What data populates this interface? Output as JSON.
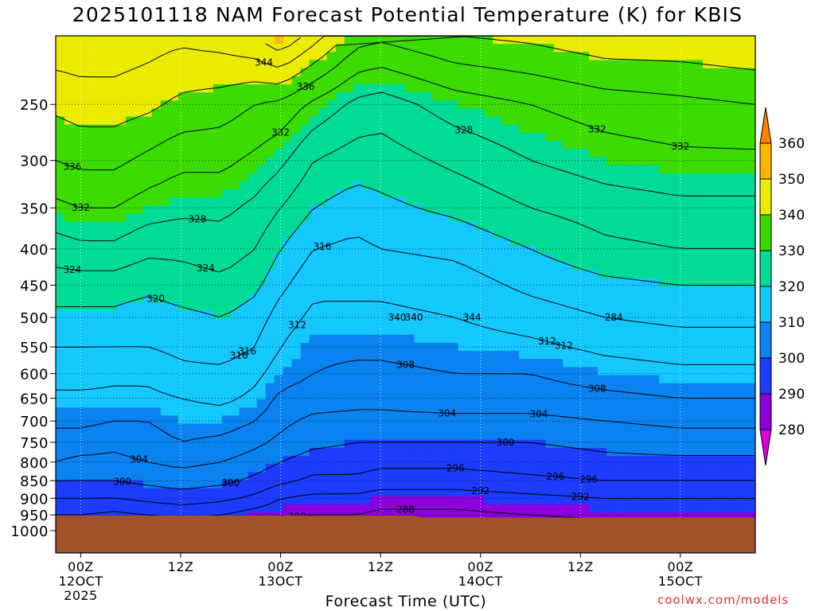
{
  "title": "2025101118 NAM Forecast Potential Temperature (K) for KBIS",
  "xlabel": "Forecast Time (UTC)",
  "credit": "coolwx.com/models",
  "chart_data": {
    "type": "heatmap",
    "title": "2025101118 NAM Forecast Potential Temperature (K) for KBIS",
    "xlabel": "Forecast Time (UTC)",
    "ylabel": "",
    "x_range_hours": [
      -3,
      81
    ],
    "x_ticks": [
      {
        "hour": 0,
        "lines": [
          "00Z",
          "12OCT",
          "2025"
        ]
      },
      {
        "hour": 12,
        "lines": [
          "12Z"
        ]
      },
      {
        "hour": 24,
        "lines": [
          "00Z",
          "13OCT"
        ]
      },
      {
        "hour": 36,
        "lines": [
          "12Z"
        ]
      },
      {
        "hour": 48,
        "lines": [
          "00Z",
          "14OCT"
        ]
      },
      {
        "hour": 60,
        "lines": [
          "12Z"
        ]
      },
      {
        "hour": 72,
        "lines": [
          "00Z",
          "15OCT"
        ]
      }
    ],
    "y_axis": "pressure (hPa), reversed log scale",
    "y_range_hpa": [
      1075,
      200
    ],
    "y_ticks": [
      250,
      300,
      350,
      400,
      450,
      500,
      550,
      600,
      650,
      700,
      750,
      800,
      850,
      900,
      950,
      1000
    ],
    "grid": true,
    "colorbar": {
      "position": "right",
      "levels": [
        280,
        290,
        300,
        310,
        320,
        330,
        340,
        350,
        360
      ],
      "colors": [
        "#dc00dc",
        "#8c00dc",
        "#1e3cff",
        "#0a82f0",
        "#14c8ff",
        "#00dc96",
        "#3cdc00",
        "#ebeb00",
        "#ffb400",
        "#ff8200"
      ]
    },
    "ground_color": "#a0522d",
    "surface_pressure_hpa": [
      {
        "hour": -3,
        "p": 952
      },
      {
        "hour": 40,
        "p": 952
      },
      {
        "hour": 41,
        "p": 958
      },
      {
        "hour": 81,
        "p": 958
      }
    ],
    "contour_interval_k": 4,
    "contour_labels": [
      344,
      340,
      344,
      332,
      340,
      336,
      332,
      328,
      332,
      336,
      328,
      332,
      324,
      316,
      312,
      324,
      316,
      320,
      308,
      312,
      316,
      304,
      308,
      312,
      304,
      300,
      296,
      300,
      292,
      296,
      288,
      296,
      288,
      292,
      304,
      300,
      284,
      284
    ],
    "theta_profiles": {
      "levels_hpa": [
        1000,
        950,
        900,
        850,
        800,
        750,
        700,
        650,
        600,
        550,
        500,
        450,
        400,
        350,
        300,
        250,
        200
      ],
      "columns": [
        {
          "hour": -3,
          "theta": [
            287,
            292,
            296,
            300,
            304,
            306,
            309,
            311,
            314,
            316,
            319,
            322,
            326,
            331,
            336,
            341,
            347
          ]
        },
        {
          "hour": 0,
          "theta": [
            287,
            292,
            296,
            300,
            303,
            306,
            309,
            311,
            314,
            316,
            319,
            322,
            327,
            332,
            337,
            342,
            347
          ]
        },
        {
          "hour": 4,
          "theta": [
            286,
            291,
            296,
            300,
            303,
            305,
            308,
            311,
            313,
            316,
            319,
            322,
            327,
            332,
            337,
            342,
            347
          ]
        },
        {
          "hour": 8,
          "theta": [
            286,
            292,
            297,
            301,
            304,
            306,
            308,
            311,
            313,
            316,
            318,
            321,
            325,
            330,
            335,
            341,
            346
          ]
        },
        {
          "hour": 12,
          "theta": [
            287,
            293,
            298,
            302,
            305,
            308,
            310,
            312,
            315,
            317,
            319,
            322,
            325,
            329,
            333,
            339,
            345
          ]
        },
        {
          "hour": 17,
          "theta": [
            287,
            292,
            297,
            301,
            304,
            307,
            310,
            313,
            315,
            318,
            320,
            323,
            326,
            329,
            333,
            338,
            346
          ]
        },
        {
          "hour": 21,
          "theta": [
            286,
            290,
            295,
            299,
            302,
            305,
            308,
            311,
            313,
            316,
            318,
            321,
            324,
            327,
            331,
            336,
            348
          ]
        },
        {
          "hour": 24,
          "theta": [
            285,
            289,
            292,
            297,
            300,
            303,
            305,
            307,
            310,
            312,
            314,
            317,
            320,
            324,
            329,
            335,
            352
          ]
        },
        {
          "hour": 28,
          "theta": [
            284,
            288,
            291,
            295,
            298,
            301,
            303,
            306,
            308,
            309,
            311,
            313,
            316,
            320,
            324,
            331,
            346
          ]
        },
        {
          "hour": 33,
          "theta": [
            284,
            288,
            291,
            295,
            298,
            300,
            303,
            305,
            307,
            309,
            311,
            313,
            315,
            318,
            322,
            327,
            338
          ]
        },
        {
          "hour": 36,
          "theta": [
            283,
            287,
            290,
            294,
            297,
            300,
            303,
            305,
            307,
            309,
            311,
            313,
            316,
            319,
            322,
            326,
            337
          ]
        },
        {
          "hour": 45,
          "theta": [
            284,
            287,
            290,
            294,
            297,
            300,
            303,
            306,
            308,
            310,
            312,
            314,
            317,
            321,
            325,
            330,
            340
          ]
        },
        {
          "hour": 54,
          "theta": [
            285,
            288,
            291,
            295,
            298,
            300,
            303,
            306,
            308,
            311,
            314,
            317,
            320,
            324,
            328,
            332,
            341
          ]
        },
        {
          "hour": 63,
          "theta": [
            285,
            289,
            292,
            296,
            299,
            301,
            304,
            307,
            310,
            313,
            316,
            319,
            323,
            326,
            330,
            334,
            343
          ]
        },
        {
          "hour": 72,
          "theta": [
            286,
            289,
            292,
            296,
            299,
            302,
            305,
            308,
            311,
            314,
            317,
            320,
            324,
            327,
            331,
            335,
            343
          ]
        },
        {
          "hour": 81,
          "theta": [
            286,
            289,
            292,
            296,
            299,
            302,
            305,
            308,
            311,
            314,
            317,
            320,
            324,
            327,
            331,
            336,
            344
          ]
        }
      ]
    }
  }
}
